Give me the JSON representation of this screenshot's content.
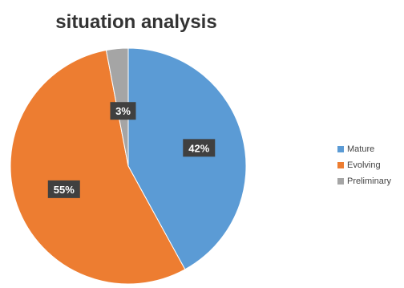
{
  "chart_data": {
    "type": "pie",
    "title": "situation analysis",
    "slices": [
      {
        "label": "Mature",
        "value": 42,
        "display": "42%",
        "color": "#5b9bd5"
      },
      {
        "label": "Evolving",
        "value": 55,
        "display": "55%",
        "color": "#ed7d31"
      },
      {
        "label": "Preliminary",
        "value": 3,
        "display": "3%",
        "color": "#a5a5a5"
      }
    ],
    "start_angle_degrees": 0,
    "direction": "clockwise",
    "data_labels": "inside, dark boxes with white bold text",
    "legend_position": "right"
  }
}
